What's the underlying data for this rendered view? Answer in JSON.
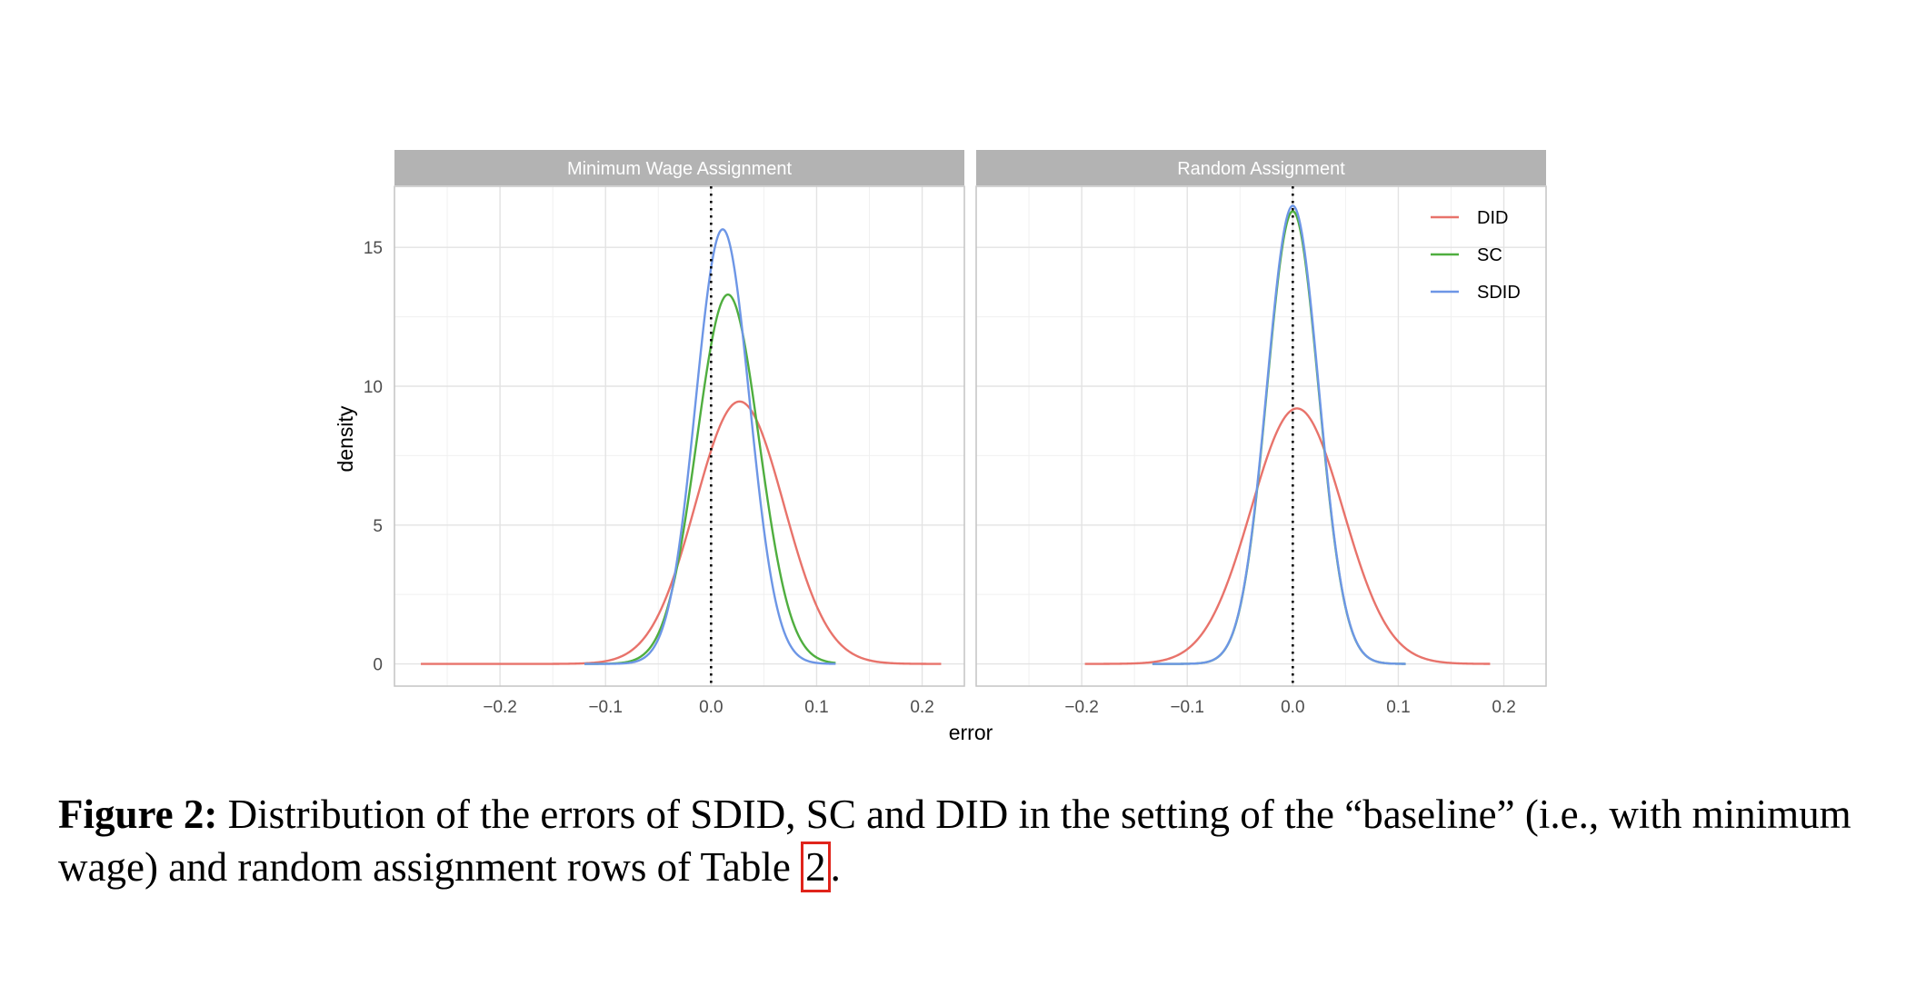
{
  "chart_data": [
    {
      "type": "line",
      "panel": "Minimum Wage Assignment",
      "xlabel": "error",
      "ylabel": "density",
      "xlim": [
        -0.3,
        0.24
      ],
      "ylim": [
        -0.8,
        17.2
      ],
      "x_ticks": [
        -0.2,
        -0.1,
        0.0,
        0.1,
        0.2
      ],
      "x_tick_labels": [
        "−0.2",
        "−0.1",
        "0.0",
        "0.1",
        "0.2"
      ],
      "y_ticks": [
        0,
        5,
        10,
        15
      ],
      "y_tick_labels": [
        "0",
        "5",
        "10",
        "15"
      ],
      "reference_line_x": 0,
      "grid": true,
      "series": [
        {
          "name": "DID",
          "color": "#e8736b",
          "mean": 0.027,
          "sd": 0.042,
          "peak": 9.45,
          "x_range": [
            -0.275,
            0.218
          ]
        },
        {
          "name": "SC",
          "color": "#4fae3f",
          "mean": 0.016,
          "sd": 0.0295,
          "peak": 13.3,
          "x_range": [
            -0.12,
            0.118
          ]
        },
        {
          "name": "SDID",
          "color": "#6d96e6",
          "mean": 0.011,
          "sd": 0.0255,
          "peak": 15.65,
          "x_range": [
            -0.12,
            0.118
          ]
        }
      ]
    },
    {
      "type": "line",
      "panel": "Random Assignment",
      "xlabel": "error",
      "ylabel": "density",
      "xlim": [
        -0.3,
        0.24
      ],
      "ylim": [
        -0.8,
        17.2
      ],
      "x_ticks": [
        -0.2,
        -0.1,
        0.0,
        0.1,
        0.2
      ],
      "x_tick_labels": [
        "−0.2",
        "−0.1",
        "0.0",
        "0.1",
        "0.2"
      ],
      "y_ticks": [
        0,
        5,
        10,
        15
      ],
      "y_tick_labels": [
        "0",
        "5",
        "10",
        "15"
      ],
      "reference_line_x": 0,
      "grid": true,
      "legend_position": "top-right",
      "series": [
        {
          "name": "DID",
          "color": "#e8736b",
          "mean": 0.004,
          "sd": 0.0435,
          "peak": 9.2,
          "x_range": [
            -0.197,
            0.187
          ]
        },
        {
          "name": "SC",
          "color": "#4fae3f",
          "mean": 0.0,
          "sd": 0.0245,
          "peak": 16.3,
          "x_range": [
            -0.133,
            0.107
          ]
        },
        {
          "name": "SDID",
          "color": "#6d96e6",
          "mean": 0.0,
          "sd": 0.0245,
          "peak": 16.5,
          "x_range": [
            -0.133,
            0.107
          ]
        }
      ]
    }
  ],
  "figure": {
    "xlabel": "error",
    "ylabel": "density",
    "legend": [
      {
        "name": "DID",
        "color": "#e8736b"
      },
      {
        "name": "SC",
        "color": "#4fae3f"
      },
      {
        "name": "SDID",
        "color": "#6d96e6"
      }
    ]
  },
  "caption": {
    "label": "Figure 2:",
    "text_before": " Distribution of the errors of SDID, SC and DID in the setting of the “baseline” (i.e., with minimum wage) and random assignment rows of Table ",
    "ref": "2",
    "text_after": "."
  }
}
